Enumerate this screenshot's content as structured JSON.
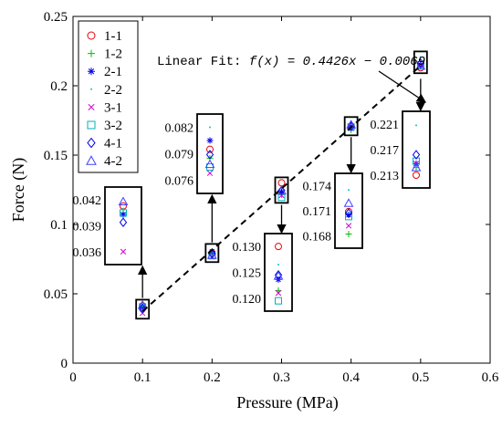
{
  "chart_data": {
    "type": "scatter",
    "xlabel": "Pressure (MPa)",
    "ylabel": "Force (N)",
    "xlim": [
      0,
      0.6
    ],
    "ylim": [
      0,
      0.25
    ],
    "xticks": [
      "0",
      "0.1",
      "0.2",
      "0.3",
      "0.4",
      "0.5",
      "0.6"
    ],
    "yticks": [
      "0",
      "0.05",
      "0.1",
      "0.15",
      "0.2",
      "0.25"
    ],
    "grid": false,
    "legend_position": "top-left",
    "x": [
      0.1,
      0.2,
      0.3,
      0.4,
      0.5
    ],
    "series": [
      {
        "name": "1-1",
        "marker": "circle",
        "color": "#e8000b",
        "values": [
          0.0413,
          0.0795,
          0.13,
          0.1709,
          0.213
        ]
      },
      {
        "name": "1-2",
        "marker": "plus",
        "color": "#00c000",
        "values": [
          0.0405,
          0.0785,
          0.1215,
          0.1682,
          0.2142
        ]
      },
      {
        "name": "2-1",
        "marker": "asterisk",
        "color": "#0000ee",
        "values": [
          0.0403,
          0.0805,
          0.1236,
          0.1705,
          0.2148
        ]
      },
      {
        "name": "2-2",
        "marker": "point",
        "color": "#00c8c8",
        "values": [
          0.041,
          0.082,
          0.1265,
          0.1735,
          0.2208
        ]
      },
      {
        "name": "3-1",
        "marker": "x",
        "color": "#d000d0",
        "values": [
          0.036,
          0.0768,
          0.121,
          0.1692,
          0.2148
        ]
      },
      {
        "name": "3-2",
        "marker": "square",
        "color": "#00b0c0",
        "values": [
          0.0405,
          0.0775,
          0.1195,
          0.1703,
          0.2152
        ]
      },
      {
        "name": "4-1",
        "marker": "diamond",
        "color": "#0000ee",
        "values": [
          0.0394,
          0.0789,
          0.1245,
          0.1707,
          0.2162
        ]
      },
      {
        "name": "4-2",
        "marker": "triangle",
        "color": "#4040ff",
        "values": [
          0.0418,
          0.0778,
          0.1243,
          0.1719,
          0.2142
        ]
      }
    ],
    "fit": {
      "label": "Linear Fit: ",
      "equation": "f(x) = 0.4426x − 0.0069",
      "slope": 0.4426,
      "intercept": -0.0069,
      "x_range": [
        0.1,
        0.5
      ]
    },
    "insets": [
      {
        "x": 0.1,
        "ticks": [
          "0.042",
          "0.039",
          "0.036"
        ],
        "tick_values": [
          0.042,
          0.039,
          0.036
        ]
      },
      {
        "x": 0.2,
        "ticks": [
          "0.082",
          "0.079",
          "0.076"
        ],
        "tick_values": [
          0.082,
          0.079,
          0.076
        ]
      },
      {
        "x": 0.3,
        "ticks": [
          "0.130",
          "0.125",
          "0.120"
        ],
        "tick_values": [
          0.13,
          0.125,
          0.12
        ]
      },
      {
        "x": 0.4,
        "ticks": [
          "0.174",
          "0.171",
          "0.168"
        ],
        "tick_values": [
          0.174,
          0.171,
          0.168
        ]
      },
      {
        "x": 0.5,
        "ticks": [
          "0.221",
          "0.217",
          "0.213"
        ],
        "tick_values": [
          0.221,
          0.217,
          0.213
        ]
      }
    ]
  }
}
